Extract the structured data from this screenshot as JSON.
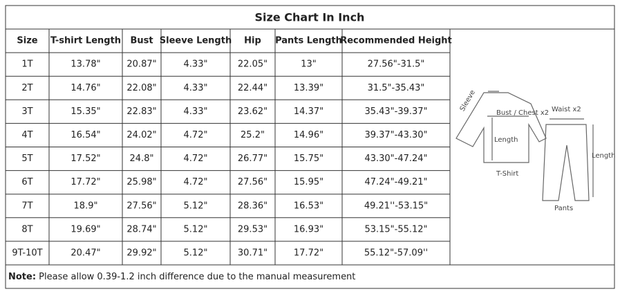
{
  "title": "Size Chart In Inch",
  "table": {
    "header": [
      "Size",
      "T-shirt Length",
      "Bust",
      "Sleeve Length",
      "Hip",
      "Pants Length",
      "Recommended Height"
    ],
    "rows": [
      [
        "1T",
        "13.78\"",
        "20.87\"",
        "4.33\"",
        "22.05\"",
        "13\"",
        "27.56\"-31.5\""
      ],
      [
        "2T",
        "14.76\"",
        "22.08\"",
        "4.33\"",
        "22.44\"",
        "13.39\"",
        "31.5\"-35.43\""
      ],
      [
        "3T",
        "15.35\"",
        "22.83\"",
        "4.33\"",
        "23.62\"",
        "14.37\"",
        "35.43\"-39.37\""
      ],
      [
        "4T",
        "16.54\"",
        "24.02\"",
        "4.72\"",
        "25.2\"",
        "14.96\"",
        "39.37\"-43.30\""
      ],
      [
        "5T",
        "17.52\"",
        "24.8\"",
        "4.72\"",
        "26.77\"",
        "15.75\"",
        "43.30\"-47.24\""
      ],
      [
        "6T",
        "17.72\"",
        "25.98\"",
        "4.72\"",
        "27.56\"",
        "15.95\"",
        "47.24\"-49.21\""
      ],
      [
        "7T",
        "18.9\"",
        "27.56\"",
        "5.12\"",
        "28.36\"",
        "16.53\"",
        "49.21''-53.15\""
      ],
      [
        "8T",
        "19.69\"",
        "28.74\"",
        "5.12\"",
        "29.53\"",
        "16.93\"",
        "53.15\"-55.12\""
      ],
      [
        "9T-10T",
        "20.47\"",
        "29.92\"",
        "5.12\"",
        "30.71\"",
        "17.72\"",
        "55.12\"-57.09''"
      ]
    ]
  },
  "diagram": {
    "sleeve": "Sleeve",
    "bust": "Bust / Chest x2",
    "shirt_length": "Length",
    "shirt": "T-Shirt",
    "waist": "Waist x2",
    "pants_length": "Length",
    "pants": "Pants"
  },
  "note": {
    "label": "Note:",
    "text": " Please allow 0.39-1.2 inch difference due to the manual measurement"
  }
}
